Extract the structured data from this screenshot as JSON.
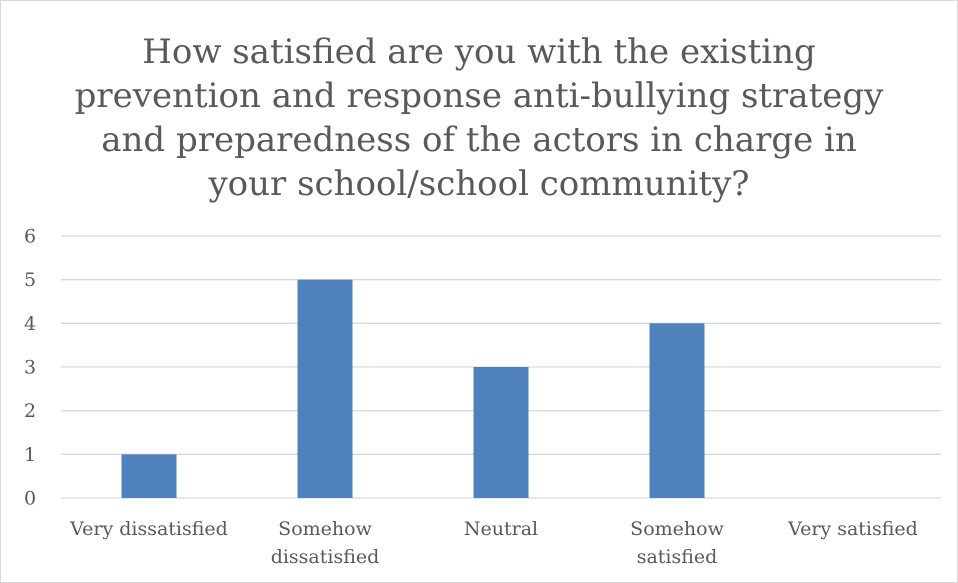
{
  "chart_data": {
    "type": "bar",
    "title_lines": [
      "How satisfied are you with the existing",
      "prevention and response anti-bullying strategy",
      "and preparedness of the actors in charge in",
      "your school/school community?"
    ],
    "categories": [
      [
        "Very dissatisfied"
      ],
      [
        "Somehow",
        "dissatisfied"
      ],
      [
        "Neutral"
      ],
      [
        "Somehow",
        "satisfied"
      ],
      [
        "Very satisfied"
      ]
    ],
    "values": [
      1,
      5,
      3,
      4,
      0
    ],
    "ylim": [
      0,
      6
    ],
    "yticks": [
      "0",
      "1",
      "2",
      "3",
      "4",
      "5",
      "6"
    ],
    "grid": true,
    "bar_color": "#4f81bd",
    "grid_color": "#d9d9d9"
  }
}
